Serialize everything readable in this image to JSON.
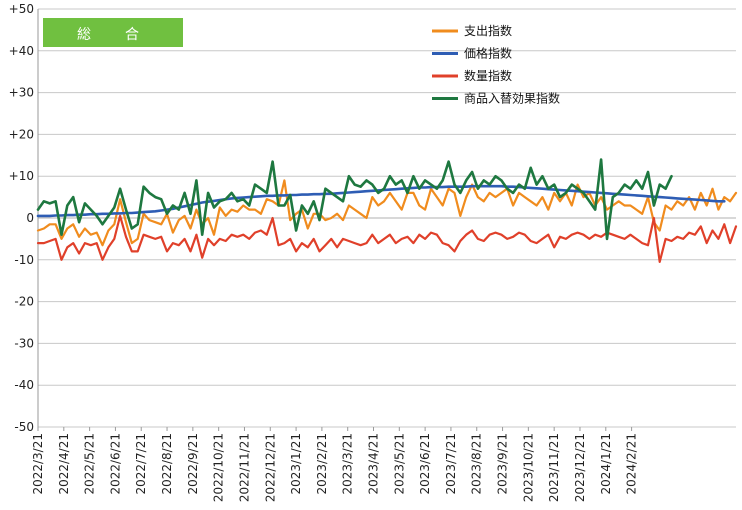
{
  "badge": {
    "label": "総　合",
    "color": "#70C040"
  },
  "chart_data": {
    "type": "line",
    "ylim": [
      -50,
      50
    ],
    "yticks": [
      "+50",
      "+40",
      "+30",
      "+20",
      "+10",
      "0",
      "-10",
      "-20",
      "-30",
      "-40",
      "-50"
    ],
    "ytick_values": [
      50,
      40,
      30,
      20,
      10,
      0,
      -10,
      -20,
      -30,
      -40,
      -50
    ],
    "x_labels": [
      "2022/3/21",
      "2022/4/21",
      "2022/5/21",
      "2022/6/21",
      "2022/7/21",
      "2022/8/21",
      "2022/9/21",
      "2022/10/21",
      "2022/11/21",
      "2022/12/21",
      "2023/1/21",
      "2023/2/21",
      "2023/3/21",
      "2023/4/21",
      "2023/5/21",
      "2023/6/21",
      "2023/7/21",
      "2023/8/21",
      "2023/9/21",
      "2023/10/21",
      "2023/11/21",
      "2023/12/21",
      "2024/1/21",
      "2024/2/21"
    ],
    "points_per_month": 4.4,
    "legend_position": "top-right",
    "series": [
      {
        "name": "支出指数",
        "color": "#F08C1E",
        "width": 2.2,
        "values": [
          -3,
          -2.5,
          -1.5,
          -1.5,
          -5,
          -2.5,
          -1.5,
          -4.5,
          -2.5,
          -4,
          -3.5,
          -6.5,
          -3,
          -1.5,
          4.5,
          -1,
          -6,
          -5,
          1,
          -0.5,
          -1,
          -1.5,
          1,
          -3.5,
          -0.5,
          0.5,
          -2.5,
          2,
          -1.5,
          0,
          -4,
          2.5,
          0.5,
          2,
          1.5,
          3,
          2,
          2,
          1,
          4.5,
          4,
          3,
          9,
          -0.5,
          1,
          2,
          -2.5,
          1,
          1,
          -0.5,
          0,
          1,
          -0.5,
          3,
          2,
          1,
          0,
          5,
          3,
          4,
          6,
          4,
          2,
          6,
          6,
          3,
          2,
          7,
          5,
          3,
          7,
          6,
          0.5,
          5,
          8,
          5,
          4,
          6,
          5,
          6,
          7,
          3,
          6,
          5,
          4,
          3,
          5,
          2,
          6,
          4,
          6,
          3,
          8,
          5,
          6,
          3,
          5,
          2,
          3,
          4,
          3,
          3,
          2,
          1,
          5,
          -1,
          -3,
          3,
          2,
          4,
          3,
          5,
          2,
          6,
          3,
          7,
          2,
          5,
          4,
          6
        ]
      },
      {
        "name": "価格指数",
        "color": "#2E5DB4",
        "width": 2.6,
        "values": [
          0.5,
          0.5,
          0.5,
          0.6,
          0.6,
          0.7,
          0.7,
          0.8,
          0.8,
          0.9,
          0.9,
          1.0,
          1.0,
          1.1,
          1.1,
          1.2,
          1.2,
          1.3,
          1.4,
          1.5,
          1.6,
          1.8,
          2.0,
          2.2,
          2.5,
          2.8,
          3.1,
          3.4,
          3.7,
          3.9,
          4.1,
          4.3,
          4.5,
          4.7,
          4.8,
          4.9,
          5.0,
          5.1,
          5.2,
          5.3,
          5.3,
          5.4,
          5.4,
          5.5,
          5.5,
          5.6,
          5.6,
          5.7,
          5.7,
          5.8,
          5.8,
          5.9,
          6.0,
          6.1,
          6.2,
          6.3,
          6.4,
          6.5,
          6.6,
          6.7,
          6.8,
          6.9,
          7.0,
          7.1,
          7.2,
          7.3,
          7.3,
          7.4,
          7.4,
          7.4,
          7.5,
          7.5,
          7.5,
          7.5,
          7.6,
          7.6,
          7.6,
          7.6,
          7.6,
          7.6,
          7.5,
          7.5,
          7.4,
          7.3,
          7.2,
          7.1,
          7.0,
          6.9,
          6.8,
          6.7,
          6.6,
          6.5,
          6.4,
          6.3,
          6.2,
          6.1,
          6.0,
          5.9,
          5.8,
          5.7,
          5.6,
          5.5,
          5.4,
          5.3,
          5.2,
          5.1,
          5.0,
          4.9,
          4.8,
          4.7,
          4.6,
          4.5,
          4.4,
          4.3,
          4.2,
          4.1,
          4.0,
          4.0
        ]
      },
      {
        "name": "数量指数",
        "color": "#E0402A",
        "width": 2.2,
        "values": [
          -6,
          -6,
          -5.5,
          -5,
          -10,
          -7,
          -6,
          -8.5,
          -6,
          -6.5,
          -6,
          -10,
          -7,
          -5,
          0.5,
          -4.5,
          -8,
          -8,
          -4,
          -4.5,
          -5,
          -4.5,
          -8,
          -6,
          -6.5,
          -5,
          -8,
          -4,
          -9.5,
          -5,
          -6.5,
          -5,
          -5.5,
          -4,
          -4.5,
          -4,
          -5,
          -3.5,
          -3,
          -4,
          0,
          -6.5,
          -6,
          -5,
          -8,
          -6,
          -7,
          -5,
          -8,
          -6.5,
          -5,
          -7,
          -5,
          -5.5,
          -6,
          -6.5,
          -6,
          -4,
          -6,
          -5,
          -4,
          -6,
          -5,
          -4.5,
          -6,
          -4,
          -5,
          -3.5,
          -4,
          -6,
          -6.5,
          -8,
          -5.5,
          -4,
          -3,
          -5,
          -5.5,
          -4,
          -3.5,
          -4,
          -5,
          -4.5,
          -3.5,
          -4,
          -5.5,
          -6,
          -5,
          -4,
          -7,
          -4.5,
          -5,
          -4,
          -3.5,
          -4,
          -5,
          -4,
          -4.5,
          -3.5,
          -4,
          -4.5,
          -5,
          -4,
          -5,
          -6,
          -6.5,
          0,
          -10.5,
          -5,
          -5.5,
          -4.5,
          -5,
          -3.5,
          -4,
          -2,
          -6,
          -3,
          -5,
          -1.5,
          -6,
          -2
        ]
      },
      {
        "name": "商品入替効果指数",
        "color": "#1E7840",
        "width": 2.6,
        "values": [
          2,
          4,
          3.5,
          4,
          -4,
          3,
          5,
          -1,
          3.5,
          2,
          0.5,
          -1.5,
          0.5,
          2.5,
          7,
          2,
          -2.5,
          -1.5,
          7.5,
          6,
          5,
          4.5,
          1,
          3,
          2,
          6,
          1,
          9,
          -4,
          6,
          2.5,
          4,
          4.5,
          6,
          4,
          4.5,
          3,
          8,
          7,
          6,
          13.5,
          3,
          3,
          5.5,
          -3,
          3,
          1,
          4,
          -0.5,
          7,
          6,
          5,
          4,
          10,
          8,
          7.5,
          9,
          8,
          6,
          7,
          10,
          8,
          9,
          6,
          10,
          7,
          9,
          8,
          7,
          9,
          13.5,
          8,
          6,
          9,
          11,
          7,
          9,
          8,
          10,
          9,
          7,
          6,
          8,
          7,
          12,
          8,
          10,
          7,
          8,
          5,
          6,
          8,
          7,
          6,
          4,
          2,
          14,
          -5,
          5,
          6,
          8,
          7,
          9,
          7,
          11,
          3,
          8,
          7,
          10
        ]
      }
    ]
  }
}
